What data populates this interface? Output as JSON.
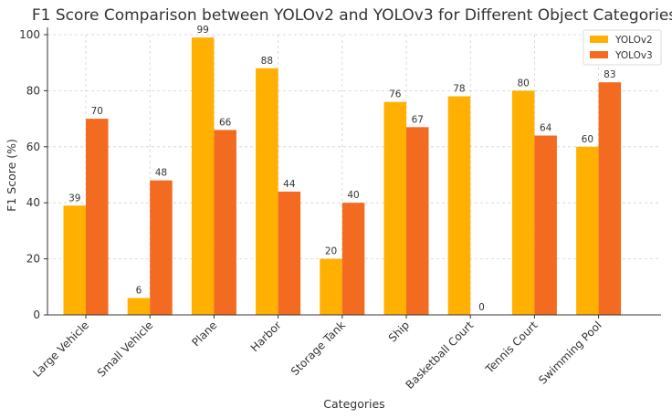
{
  "chart_data": {
    "type": "bar",
    "title": "F1 Score Comparison between YOLOv2 and YOLOv3 for Different Object Categories",
    "xlabel": "Categories",
    "ylabel": "F1 Score (%)",
    "ylim": [
      0,
      100
    ],
    "yticks": [
      "0",
      "20",
      "40",
      "60",
      "80",
      "100"
    ],
    "grid": true,
    "legend_position": "top-right",
    "categories": [
      "Large Vehicle",
      "Small Vehicle",
      "Plane",
      "Harbor",
      "Storage Tank",
      "Ship",
      "Basketball Court",
      "Tennis Court",
      "Swimming Pool"
    ],
    "series": [
      {
        "name": "YOLOv2",
        "color": "#FFB000",
        "values": [
          39,
          6,
          99,
          88,
          20,
          76,
          78,
          80,
          60
        ]
      },
      {
        "name": "YOLOv3",
        "color": "#F26B21",
        "values": [
          70,
          48,
          66,
          44,
          40,
          67,
          0,
          64,
          83
        ]
      }
    ]
  }
}
